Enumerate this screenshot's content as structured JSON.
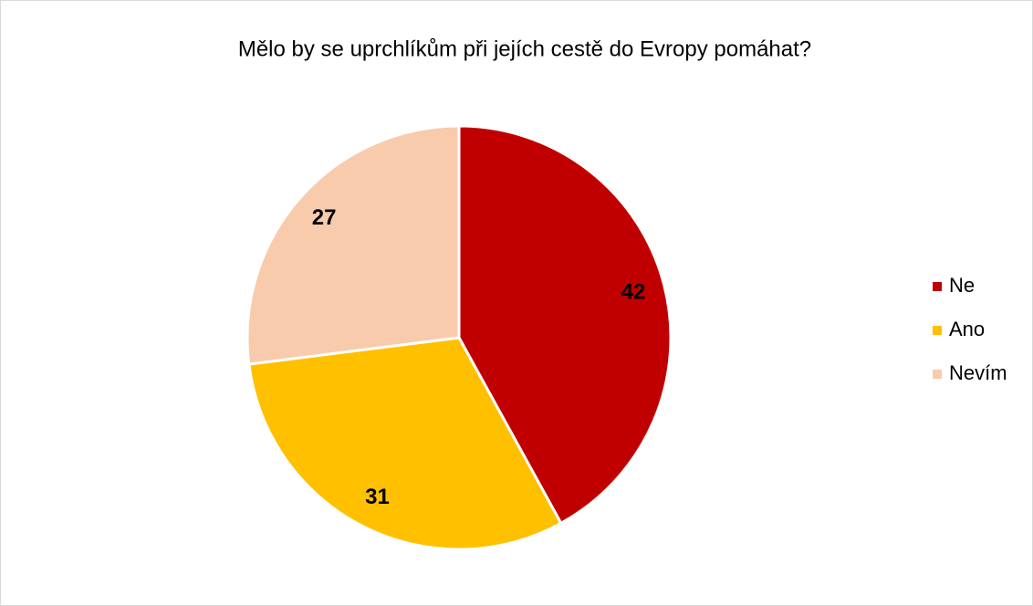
{
  "chart_data": {
    "type": "pie",
    "title": "Mělo by se uprchlíkům při jejích cestě do Evropy pomáhat?",
    "categories": [
      "Ne",
      "Ano",
      "Nevím"
    ],
    "values": [
      42,
      31,
      27
    ],
    "colors": [
      "#c00000",
      "#ffc000",
      "#f8cbad"
    ],
    "legend": "right"
  }
}
